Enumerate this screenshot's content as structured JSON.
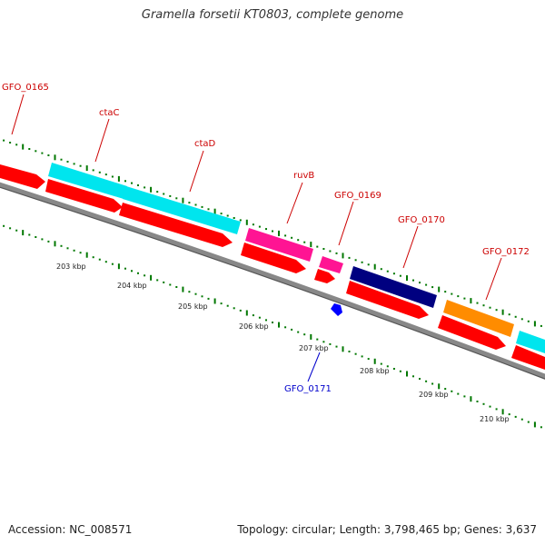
{
  "title": "Gramella forsetii KT0803, complete genome",
  "footer": {
    "accession": "Accession: NC_008571",
    "summary": "Topology: circular; Length: 3,798,465 bp; Genes: 3,637"
  },
  "colors": {
    "label_red": "#cc0000",
    "label_blue": "#0000cc",
    "cds_red": "#ff0000",
    "cyan": "#00e5ee",
    "magenta": "#ff1493",
    "navy": "#000080",
    "orange": "#ff8c00",
    "tick_green": "#007700",
    "backbone": "#888888"
  },
  "ruler": {
    "ticks": [
      "203 kbp",
      "204 kbp",
      "205 kbp",
      "206 kbp",
      "207 kbp",
      "208 kbp",
      "209 kbp",
      "210 kbp"
    ]
  },
  "genes": {
    "GFO_0165": "GFO_0165",
    "ctaC": "ctaC",
    "ctaD": "ctaD",
    "ruvB": "ruvB",
    "GFO_0169": "GFO_0169",
    "GFO_0170": "GFO_0170",
    "GFO_0171": "GFO_0171",
    "GFO_0172": "GFO_0172"
  }
}
